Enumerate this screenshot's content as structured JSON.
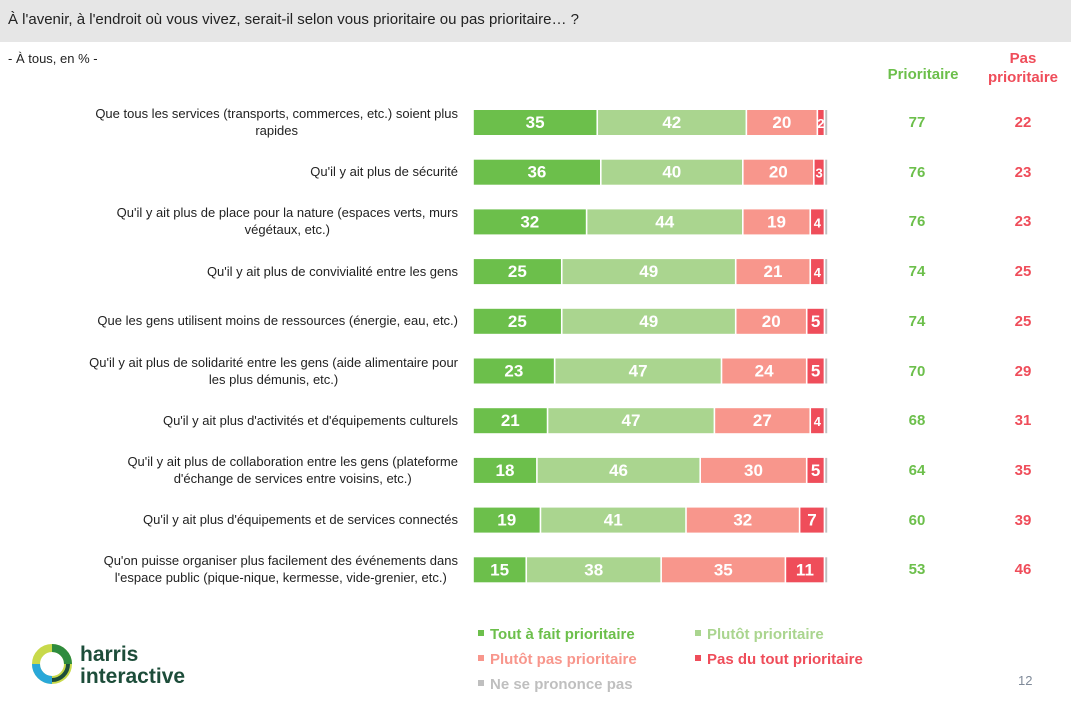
{
  "header": {
    "title": "À l'avenir, à l'endroit où vous vivez, serait-il selon vous prioritaire ou pas prioritaire… ?",
    "subtitle": "- À tous, en % -"
  },
  "columns": {
    "prioritaire": "Prioritaire",
    "pas_prioritaire_line1": "Pas",
    "pas_prioritaire_line2": "prioritaire"
  },
  "colors": {
    "tout_a_fait": "#6cbf4b",
    "plutot": "#aad58f",
    "plutot_pas": "#f8968c",
    "pas_du_tout": "#ef4d5a",
    "nsp": "#bfbfbf"
  },
  "chart_data": {
    "type": "bar",
    "orientation": "horizontal-stacked-100",
    "title": "À l'avenir, à l'endroit où vous vivez, serait-il selon vous prioritaire ou pas prioritaire… ?",
    "subtitle": "- À tous, en % -",
    "unit": "%",
    "categories": [
      [
        "Que tous les services (transports, commerces, etc.) soient plus",
        "rapides"
      ],
      [
        "Qu'il y ait plus de sécurité"
      ],
      [
        "Qu'il y ait plus de place pour la nature (espaces verts, murs",
        "végétaux, etc.)"
      ],
      [
        "Qu'il y ait plus de convivialité entre les gens"
      ],
      [
        "Que les gens utilisent moins de ressources (énergie, eau, etc.)"
      ],
      [
        "Qu'il y ait plus de solidarité entre les gens (aide alimentaire pour",
        "les plus démunis, etc.)"
      ],
      [
        "Qu'il y ait plus d'activités et d'équipements culturels"
      ],
      [
        "Qu'il y ait plus de collaboration entre les gens (plateforme",
        "d'échange de services entre voisins, etc.)"
      ],
      [
        "Qu'il y ait plus d'équipements et de services connectés"
      ],
      [
        "Qu'on puisse organiser plus facilement des événements dans",
        "l'espace public (pique-nique, kermesse, vide-grenier, etc.)"
      ]
    ],
    "series": [
      {
        "name": "Tout à fait prioritaire",
        "values": [
          35,
          36,
          32,
          25,
          25,
          23,
          21,
          18,
          19,
          15
        ]
      },
      {
        "name": "Plutôt prioritaire",
        "values": [
          42,
          40,
          44,
          49,
          49,
          47,
          47,
          46,
          41,
          38
        ]
      },
      {
        "name": "Plutôt pas prioritaire",
        "values": [
          20,
          20,
          19,
          21,
          20,
          24,
          27,
          30,
          32,
          35
        ]
      },
      {
        "name": "Pas du tout prioritaire",
        "values": [
          2,
          3,
          4,
          4,
          5,
          5,
          4,
          5,
          7,
          11
        ]
      },
      {
        "name": "Ne se prononce pas",
        "values": [
          1,
          1,
          1,
          1,
          1,
          1,
          1,
          1,
          1,
          1
        ]
      }
    ],
    "totals": {
      "prioritaire": [
        77,
        76,
        76,
        74,
        74,
        70,
        68,
        64,
        60,
        53
      ],
      "pas_prioritaire": [
        22,
        23,
        23,
        25,
        25,
        29,
        31,
        35,
        39,
        46
      ]
    },
    "xlim": [
      0,
      100
    ],
    "grid": false,
    "legend_position": "bottom"
  },
  "legend": [
    {
      "label": "Tout à fait prioritaire",
      "color": "#6cbf4b"
    },
    {
      "label": "Plutôt prioritaire",
      "color": "#aad58f"
    },
    {
      "label": "Plutôt pas prioritaire",
      "color": "#f8968c"
    },
    {
      "label": "Pas du tout prioritaire",
      "color": "#ef4d5a"
    },
    {
      "label": "Ne se prononce pas",
      "color": "#bfbfbf"
    }
  ],
  "footer": {
    "logo_line1": "harris",
    "logo_line2": "interactive",
    "page_number": "12"
  }
}
